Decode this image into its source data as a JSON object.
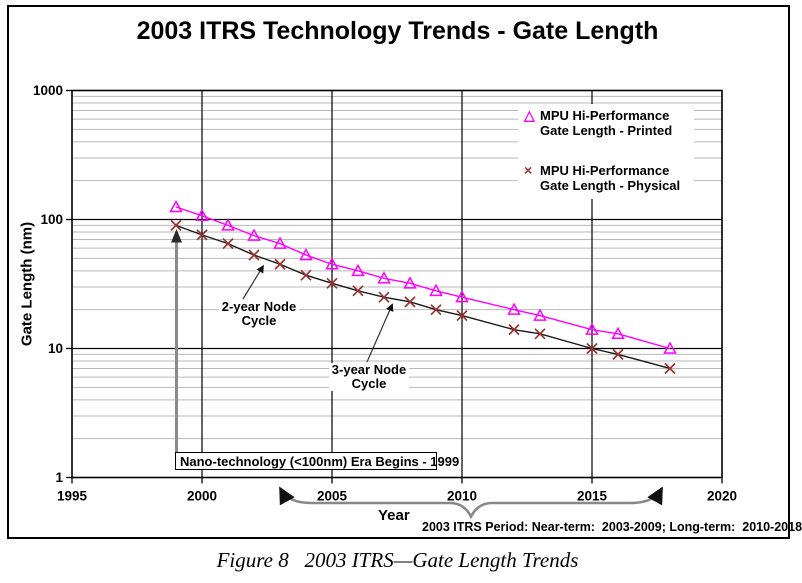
{
  "figure": {
    "title": "2003 ITRS Technology Trends - Gate Length",
    "caption": "Figure 8   2003 ITRS—Gate Length Trends",
    "period_note": "2003 ITRS Period: Near-term:  2003-2009; Long-term:  2010-2018"
  },
  "axes": {
    "x_label": "Year",
    "y_label": "Gate Length (nm)"
  },
  "legend": {
    "entries": [
      {
        "marker": "triangle",
        "symbol": "△",
        "color": "#ff00ff",
        "line1": "MPU Hi-Performance",
        "line2": "Gate Length - Printed"
      },
      {
        "marker": "x",
        "symbol": "×",
        "color": "#993333",
        "line1": "MPU Hi-Performance",
        "line2": "Gate Length - Physical"
      }
    ]
  },
  "annotations": {
    "two_year": {
      "line1": "2-year Node",
      "line2": "Cycle"
    },
    "three_year": {
      "line1": "3-year Node",
      "line2": "Cycle"
    },
    "nano_box": "Nano-technology (<100nm) Era Begins - 1999"
  },
  "chart_data": {
    "type": "line",
    "title": "2003 ITRS Technology Trends - Gate Length",
    "xlabel": "Year",
    "ylabel": "Gate Length (nm)",
    "y_scale": "log",
    "xlim": [
      1995,
      2020
    ],
    "ylim": [
      1,
      1000
    ],
    "x_ticks": [
      1995,
      2000,
      2005,
      2010,
      2015,
      2020
    ],
    "y_ticks": [
      1,
      10,
      100,
      1000
    ],
    "grid": {
      "vertical_years": [
        2000,
        2005,
        2010,
        2015
      ],
      "minor_horizontal_log": true
    },
    "legend_position": "upper-right-inside",
    "x": [
      1999,
      2000,
      2001,
      2002,
      2003,
      2004,
      2005,
      2006,
      2007,
      2008,
      2009,
      2010,
      2012,
      2013,
      2015,
      2016,
      2018
    ],
    "series": [
      {
        "name": "MPU Hi-Performance Gate Length - Printed",
        "marker": "triangle",
        "marker_color": "#ff00ff",
        "line_color": "#ff00ff",
        "values": [
          125,
          107,
          90,
          75,
          65,
          53,
          45,
          40,
          35,
          32,
          28,
          25,
          20,
          18,
          14,
          13,
          10
        ]
      },
      {
        "name": "MPU Hi-Performance Gate Length - Physical",
        "marker": "x",
        "marker_color": "#993333",
        "line_color": "#1a1a1a",
        "values": [
          90,
          76,
          65,
          53,
          45,
          37,
          32,
          28,
          25,
          23,
          20,
          18,
          14,
          13,
          10,
          9,
          7
        ]
      }
    ]
  }
}
